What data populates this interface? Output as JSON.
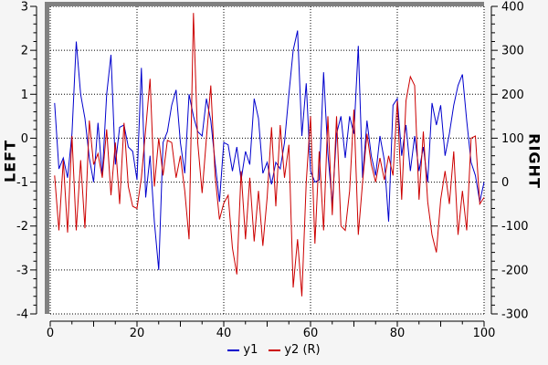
{
  "chart": {
    "left_axis": {
      "title": "LEFT",
      "tick_labels": [
        "3",
        "2",
        "1",
        "0",
        "-1",
        "-2",
        "-3",
        "-4"
      ]
    },
    "right_axis": {
      "title": "RIGHT",
      "tick_labels": [
        "400",
        "300",
        "200",
        "100",
        "0",
        "-100",
        "-200",
        "-300"
      ]
    },
    "x_axis": {
      "tick_labels": [
        "0",
        "20",
        "40",
        "60",
        "80",
        "100"
      ]
    },
    "legend": [
      {
        "label": "y1",
        "color": "#0000cd"
      },
      {
        "label": "y2 (R)",
        "color": "#cc0000"
      }
    ],
    "colors": {
      "grid": "#000000",
      "axis": "#000000",
      "bevel": "#808080",
      "plot_bg": "#ffffff",
      "outer_bg": "#f5f5f5"
    }
  },
  "chart_data": {
    "type": "line",
    "title": "",
    "x": {
      "start": 1,
      "step": 1,
      "count": 100
    },
    "x_axis": {
      "range": [
        0,
        100
      ],
      "major_tick": 10,
      "minor_tick": 5,
      "label_every": 20
    },
    "left_axis": {
      "label": "LEFT",
      "range": [
        -4,
        3
      ],
      "major_tick": 1,
      "minor_tick": 0.2
    },
    "right_axis": {
      "label": "RIGHT",
      "range": [
        -300,
        400
      ],
      "major_tick": 100,
      "minor_tick": 20
    },
    "grid": true,
    "legend_position": "bottom",
    "series": [
      {
        "name": "y1",
        "axis": "left",
        "color": "#0000cd",
        "values": [
          0.8,
          -0.7,
          -0.45,
          -0.9,
          0.1,
          2.2,
          1.0,
          0.45,
          -0.45,
          -1.0,
          0.35,
          -0.85,
          1.0,
          1.9,
          -0.6,
          0.25,
          0.3,
          -0.2,
          -0.3,
          -0.95,
          1.6,
          -1.35,
          -0.4,
          -1.9,
          -3.0,
          -0.1,
          0.15,
          0.75,
          1.1,
          -0.1,
          -0.8,
          1.0,
          0.5,
          0.15,
          0.05,
          0.9,
          0.4,
          -0.55,
          -1.45,
          -0.1,
          -0.15,
          -0.75,
          -0.2,
          -0.95,
          -0.3,
          -0.6,
          0.9,
          0.45,
          -0.8,
          -0.55,
          -1.05,
          -0.55,
          -0.7,
          -0.1,
          1.0,
          2.0,
          2.45,
          0.05,
          1.25,
          -0.75,
          -1.0,
          -0.95,
          1.5,
          -0.35,
          -1.5,
          0.1,
          0.5,
          -0.45,
          0.5,
          0.1,
          2.1,
          -0.9,
          0.4,
          -0.4,
          -0.85,
          0.05,
          -0.5,
          -1.9,
          0.75,
          0.9,
          -0.4,
          0.3,
          -0.75,
          0.05,
          -0.75,
          -0.2,
          -1.0,
          0.8,
          0.3,
          0.75,
          -0.4,
          0.1,
          0.75,
          1.2,
          1.45,
          0.4,
          -0.55,
          -0.85,
          -1.45,
          -1.0
        ]
      },
      {
        "name": "y2 (R)",
        "axis": "right",
        "color": "#cc0000",
        "values": [
          15,
          -110,
          50,
          -115,
          105,
          -110,
          50,
          -105,
          140,
          40,
          65,
          10,
          120,
          -30,
          90,
          -50,
          135,
          -10,
          -55,
          -60,
          10,
          120,
          235,
          -10,
          100,
          15,
          95,
          90,
          10,
          60,
          -20,
          -130,
          385,
          90,
          -25,
          100,
          220,
          15,
          -85,
          -48,
          -30,
          -150,
          -210,
          25,
          -130,
          10,
          -135,
          -20,
          -145,
          -35,
          125,
          -55,
          130,
          10,
          85,
          -240,
          -130,
          -260,
          0,
          150,
          -140,
          70,
          -110,
          150,
          -75,
          150,
          -100,
          -110,
          -20,
          165,
          -120,
          0,
          110,
          40,
          0,
          55,
          5,
          60,
          15,
          185,
          -40,
          185,
          240,
          220,
          -40,
          115,
          -45,
          -120,
          -160,
          -40,
          25,
          -50,
          70,
          -120,
          -20,
          -110,
          100,
          105,
          -50,
          -35
        ]
      }
    ]
  }
}
